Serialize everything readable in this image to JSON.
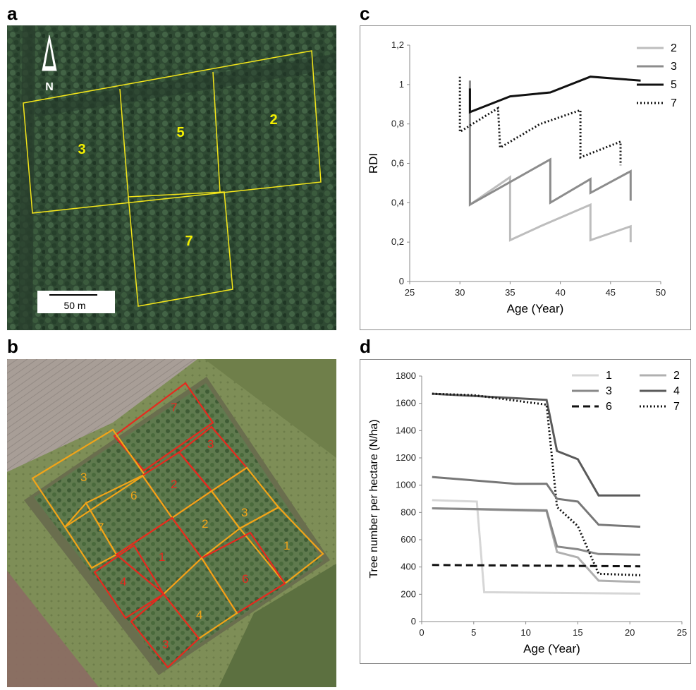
{
  "panels": {
    "a": "a",
    "b": "b",
    "c": "c",
    "d": "d"
  },
  "map_a": {
    "north_label": "N",
    "scale_label": "50 m",
    "plot_labels": [
      "3",
      "5",
      "2",
      "7"
    ],
    "outline_color": "#f4e61a",
    "label_color": "#f4f000"
  },
  "map_b": {
    "plot_labels": [
      "7",
      "3",
      "3",
      "2",
      "6",
      "2",
      "3",
      "7",
      "1",
      "1",
      "4",
      "6",
      "4",
      "3"
    ],
    "colors": {
      "red": "#e8281e",
      "orange": "#f2a418"
    }
  },
  "chart_data": [
    {
      "type": "line",
      "title": "",
      "xlabel": "Age (Year)",
      "ylabel": "RDI",
      "xlim": [
        25,
        50
      ],
      "ylim": [
        0,
        1.2
      ],
      "xticks": [
        "25",
        "30",
        "35",
        "40",
        "45",
        "50"
      ],
      "yticks": [
        "0",
        "0,2",
        "0,4",
        "0,6",
        "0,8",
        "1",
        "1,2"
      ],
      "legend": "top-right",
      "series": [
        {
          "name": "2",
          "color": "#bdbdbd",
          "style": "solid",
          "points": [
            [
              31,
              1.02
            ],
            [
              31,
              0.39
            ],
            [
              35,
              0.53
            ],
            [
              35,
              0.21
            ],
            [
              38,
              0.28
            ],
            [
              43,
              0.39
            ],
            [
              43,
              0.21
            ],
            [
              47,
              0.28
            ],
            [
              47,
              0.2
            ]
          ]
        },
        {
          "name": "3",
          "color": "#8c8c8c",
          "style": "solid",
          "points": [
            [
              31,
              1.02
            ],
            [
              31,
              0.39
            ],
            [
              39,
              0.62
            ],
            [
              39,
              0.4
            ],
            [
              43,
              0.52
            ],
            [
              43,
              0.45
            ],
            [
              47,
              0.56
            ],
            [
              47,
              0.41
            ]
          ]
        },
        {
          "name": "5",
          "color": "#111111",
          "style": "solid",
          "points": [
            [
              31,
              0.98
            ],
            [
              31,
              0.86
            ],
            [
              35,
              0.94
            ],
            [
              39,
              0.96
            ],
            [
              43,
              1.04
            ],
            [
              48,
              1.02
            ]
          ]
        },
        {
          "name": "7",
          "color": "#111111",
          "style": "dotted",
          "points": [
            [
              30,
              1.04
            ],
            [
              30,
              0.76
            ],
            [
              33.8,
              0.88
            ],
            [
              34,
              0.68
            ],
            [
              38,
              0.8
            ],
            [
              42,
              0.87
            ],
            [
              42,
              0.63
            ],
            [
              46,
              0.71
            ],
            [
              46,
              0.59
            ]
          ]
        }
      ]
    },
    {
      "type": "line",
      "title": "",
      "xlabel": "Age (Year)",
      "ylabel": "Tree number per hectare (N/ha)",
      "xlim": [
        0,
        25
      ],
      "ylim": [
        0,
        1800
      ],
      "xticks": [
        "0",
        "5",
        "10",
        "15",
        "20",
        "25"
      ],
      "yticks": [
        "0",
        "200",
        "400",
        "600",
        "800",
        "1000",
        "1200",
        "1400",
        "1600",
        "1800"
      ],
      "legend": "top-right",
      "series": [
        {
          "name": "1",
          "color": "#d6d6d6",
          "style": "solid",
          "points": [
            [
              1,
              890
            ],
            [
              5.3,
              880
            ],
            [
              6,
              215
            ],
            [
              21,
              205
            ]
          ]
        },
        {
          "name": "2",
          "color": "#b0b0b0",
          "style": "solid",
          "points": [
            [
              1,
              830
            ],
            [
              9,
              815
            ],
            [
              12,
              810
            ],
            [
              13,
              510
            ],
            [
              15,
              470
            ],
            [
              17,
              300
            ],
            [
              21,
              290
            ]
          ]
        },
        {
          "name": "3",
          "color": "#888888",
          "style": "solid",
          "points": [
            [
              1,
              830
            ],
            [
              9,
              820
            ],
            [
              12,
              815
            ],
            [
              13,
              550
            ],
            [
              15,
              530
            ],
            [
              17,
              495
            ],
            [
              21,
              490
            ]
          ]
        },
        {
          "name": "4",
          "color": "#5a5a5a",
          "style": "solid",
          "points": [
            [
              1,
              1670
            ],
            [
              12,
              1625
            ],
            [
              13,
              1250
            ],
            [
              15,
              1190
            ],
            [
              17,
              925
            ],
            [
              21,
              925
            ]
          ]
        },
        {
          "name": "6",
          "color": "#111111",
          "style": "dashed",
          "points": [
            [
              1,
              415
            ],
            [
              21,
              405
            ]
          ]
        },
        {
          "name": "7",
          "color": "#111111",
          "style": "dotted",
          "points": [
            [
              1,
              1670
            ],
            [
              5,
              1660
            ],
            [
              12,
              1590
            ],
            [
              13,
              840
            ],
            [
              15,
              700
            ],
            [
              17,
              350
            ],
            [
              21,
              340
            ]
          ]
        },
        {
          "name": "",
          "color": "#777777",
          "style": "solid",
          "points": [
            [
              1,
              1060
            ],
            [
              9,
              1010
            ],
            [
              12,
              1010
            ],
            [
              13,
              900
            ],
            [
              15,
              880
            ],
            [
              17,
              710
            ],
            [
              21,
              695
            ]
          ]
        }
      ]
    }
  ]
}
